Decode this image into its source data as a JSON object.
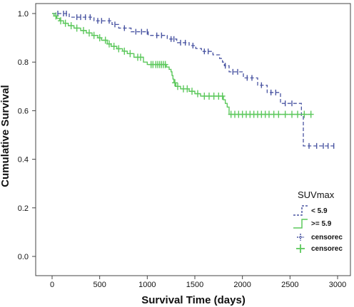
{
  "chart_data": {
    "type": "line",
    "subtype": "kaplan-meier step",
    "xlabel": "Survival Time (days)",
    "ylabel": "Cumulative Survival",
    "xlim": [
      0,
      3000
    ],
    "ylim": [
      0.0,
      1.0
    ],
    "x_ticks": [
      "0",
      "500",
      "1000",
      "1500",
      "2000",
      "2500",
      "3000"
    ],
    "y_ticks": [
      "0.0",
      "0.2",
      "0.4",
      "0.6",
      "0.8",
      "1.0"
    ],
    "grid": false,
    "legend": {
      "title": "SUVmax",
      "placement": "bottom-right",
      "entries": [
        "< 5.9",
        ">= 5.9",
        "censorec",
        "censorec"
      ]
    },
    "series": [
      {
        "name": "< 5.9",
        "style": "dashed-step",
        "color": "#4a55a2",
        "steps": [
          [
            0,
            1.0
          ],
          [
            180,
            0.985
          ],
          [
            440,
            0.97
          ],
          [
            630,
            0.955
          ],
          [
            700,
            0.94
          ],
          [
            830,
            0.925
          ],
          [
            1010,
            0.91
          ],
          [
            1210,
            0.895
          ],
          [
            1310,
            0.88
          ],
          [
            1440,
            0.868
          ],
          [
            1510,
            0.856
          ],
          [
            1570,
            0.844
          ],
          [
            1690,
            0.83
          ],
          [
            1760,
            0.815
          ],
          [
            1790,
            0.8
          ],
          [
            1810,
            0.785
          ],
          [
            1860,
            0.76
          ],
          [
            2010,
            0.735
          ],
          [
            2160,
            0.705
          ],
          [
            2260,
            0.675
          ],
          [
            2400,
            0.63
          ],
          [
            2620,
            0.58
          ],
          [
            2640,
            0.455
          ],
          [
            2960,
            0.455
          ]
        ],
        "censored": [
          60,
          120,
          150,
          260,
          300,
          350,
          400,
          480,
          520,
          600,
          660,
          760,
          880,
          940,
          1000,
          1100,
          1150,
          1250,
          1280,
          1350,
          1400,
          1480,
          1600,
          1640,
          1820,
          1900,
          1950,
          2050,
          2100,
          2200,
          2300,
          2350,
          2450,
          2520,
          2700,
          2780,
          2850,
          2900,
          2960
        ]
      },
      {
        "name": ">= 5.9",
        "style": "solid-step",
        "color": "#5cc85c",
        "steps": [
          [
            0,
            1.0
          ],
          [
            20,
            0.99
          ],
          [
            50,
            0.98
          ],
          [
            80,
            0.97
          ],
          [
            120,
            0.96
          ],
          [
            170,
            0.95
          ],
          [
            230,
            0.94
          ],
          [
            300,
            0.93
          ],
          [
            360,
            0.92
          ],
          [
            420,
            0.91
          ],
          [
            480,
            0.9
          ],
          [
            520,
            0.89
          ],
          [
            580,
            0.875
          ],
          [
            620,
            0.865
          ],
          [
            680,
            0.855
          ],
          [
            740,
            0.845
          ],
          [
            790,
            0.835
          ],
          [
            860,
            0.82
          ],
          [
            960,
            0.8
          ],
          [
            1000,
            0.79
          ],
          [
            1200,
            0.78
          ],
          [
            1230,
            0.77
          ],
          [
            1250,
            0.76
          ],
          [
            1260,
            0.745
          ],
          [
            1270,
            0.73
          ],
          [
            1280,
            0.715
          ],
          [
            1300,
            0.7
          ],
          [
            1350,
            0.69
          ],
          [
            1440,
            0.68
          ],
          [
            1500,
            0.67
          ],
          [
            1560,
            0.66
          ],
          [
            1800,
            0.645
          ],
          [
            1820,
            0.63
          ],
          [
            1840,
            0.615
          ],
          [
            1860,
            0.585
          ],
          [
            2720,
            0.585
          ]
        ],
        "censored": [
          40,
          90,
          140,
          200,
          260,
          330,
          390,
          440,
          500,
          560,
          600,
          650,
          700,
          760,
          820,
          900,
          930,
          1040,
          1060,
          1090,
          1110,
          1130,
          1150,
          1170,
          1190,
          1290,
          1320,
          1380,
          1420,
          1470,
          1530,
          1600,
          1650,
          1700,
          1750,
          1790,
          1880,
          1920,
          1960,
          2000,
          2040,
          2080,
          2120,
          2160,
          2200,
          2240,
          2280,
          2330,
          2380,
          2450,
          2520,
          2580,
          2650,
          2720
        ]
      }
    ]
  }
}
